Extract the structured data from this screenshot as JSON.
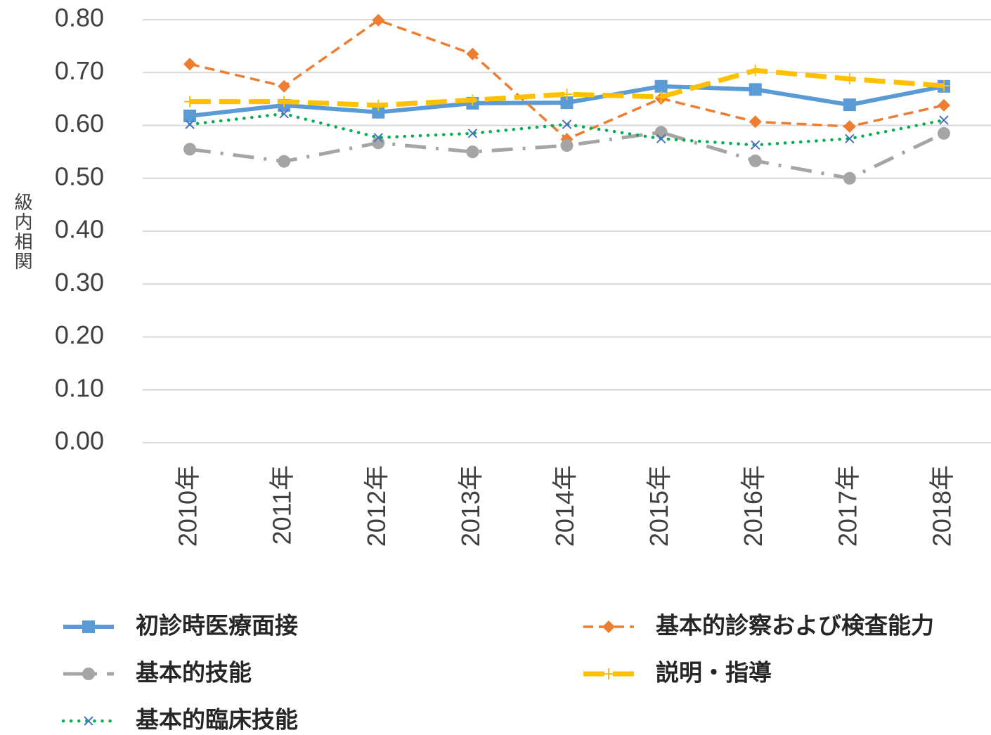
{
  "chart_data": {
    "type": "line",
    "y_label": "級内相関",
    "categories": [
      "2010年",
      "2011年",
      "2012年",
      "2013年",
      "2014年",
      "2015年",
      "2016年",
      "2017年",
      "2018年"
    ],
    "series": [
      {
        "name": "初診時医療面接",
        "color": "#5b9bd5",
        "marker": "square",
        "line_style": "solid",
        "values": [
          0.618,
          0.638,
          0.625,
          0.642,
          0.643,
          0.674,
          0.668,
          0.639,
          0.674
        ]
      },
      {
        "name": "基本的診察および検査能力",
        "color": "#ed7d31",
        "marker": "diamond",
        "line_style": "dashed",
        "values": [
          0.716,
          0.674,
          0.799,
          0.735,
          0.574,
          0.651,
          0.607,
          0.598,
          0.638
        ]
      },
      {
        "name": "基本的技能",
        "color": "#a5a5a5",
        "marker": "circle",
        "line_style": "dashdot",
        "values": [
          0.555,
          0.532,
          0.567,
          0.55,
          0.562,
          0.587,
          0.533,
          0.5,
          0.585
        ]
      },
      {
        "name": "説明・指導",
        "color": "#ffc000",
        "marker": "plus",
        "line_style": "longdash",
        "values": [
          0.645,
          0.645,
          0.638,
          0.648,
          0.659,
          0.654,
          0.704,
          0.688,
          0.675
        ]
      },
      {
        "name": "基本的臨床技能",
        "color": "#00b050",
        "marker": "x",
        "line_style": "dotted",
        "values": [
          0.602,
          0.622,
          0.577,
          0.585,
          0.602,
          0.575,
          0.563,
          0.575,
          0.61
        ]
      }
    ],
    "ylim": [
      0,
      0.8
    ],
    "yticks": [
      {
        "value": 0,
        "label": "0.00"
      },
      {
        "value": 0.1,
        "label": "0.10"
      },
      {
        "value": 0.2,
        "label": "0.20"
      },
      {
        "value": 0.3,
        "label": "0.30"
      },
      {
        "value": 0.4,
        "label": "0.40"
      },
      {
        "value": 0.5,
        "label": "0.50"
      },
      {
        "value": 0.6,
        "label": "0.60"
      },
      {
        "value": 0.7,
        "label": "0.70"
      },
      {
        "value": 0.8,
        "label": "0.80"
      }
    ],
    "grid": true
  }
}
